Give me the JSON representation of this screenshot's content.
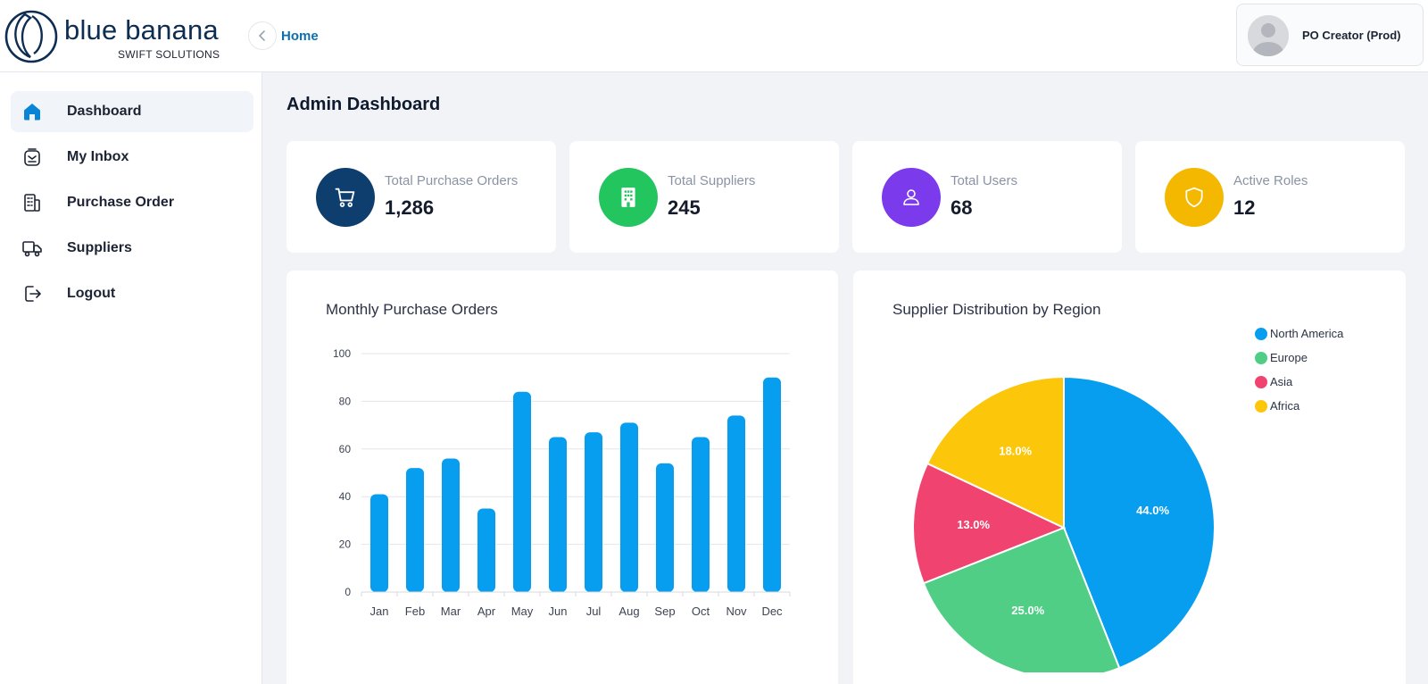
{
  "brand": {
    "name": "blue banana",
    "tagline": "SWIFT SOLUTIONS"
  },
  "header": {
    "breadcrumb": "Home",
    "user_name": "PO Creator (Prod)"
  },
  "sidebar": {
    "items": [
      {
        "label": "Dashboard",
        "icon": "home-icon",
        "active": true
      },
      {
        "label": "My Inbox",
        "icon": "inbox-icon",
        "active": false
      },
      {
        "label": "Purchase Order",
        "icon": "document-icon",
        "active": false
      },
      {
        "label": "Suppliers",
        "icon": "truck-icon",
        "active": false
      },
      {
        "label": "Logout",
        "icon": "logout-icon",
        "active": false
      }
    ]
  },
  "page": {
    "title": "Admin Dashboard"
  },
  "stats": [
    {
      "label": "Total Purchase Orders",
      "value": "1,286",
      "icon": "cart-icon",
      "color": "#0d3e6e"
    },
    {
      "label": "Total Suppliers",
      "value": "245",
      "icon": "building-icon",
      "color": "#22c55e"
    },
    {
      "label": "Total Users",
      "value": "68",
      "icon": "user-icon",
      "color": "#7c3aed"
    },
    {
      "label": "Active Roles",
      "value": "12",
      "icon": "shield-icon",
      "color": "#f5b800"
    }
  ],
  "chart_data": [
    {
      "type": "bar",
      "title": "Monthly Purchase Orders",
      "categories": [
        "Jan",
        "Feb",
        "Mar",
        "Apr",
        "May",
        "Jun",
        "Jul",
        "Aug",
        "Sep",
        "Oct",
        "Nov",
        "Dec"
      ],
      "values": [
        41,
        52,
        56,
        35,
        84,
        65,
        67,
        71,
        54,
        65,
        74,
        90
      ],
      "ylim": [
        0,
        100
      ],
      "yticks": [
        "0",
        "20",
        "40",
        "60",
        "80",
        "100"
      ],
      "color": "#079ef0",
      "grid": true
    },
    {
      "type": "pie",
      "title": "Supplier Distribution by Region",
      "labels": [
        "North America",
        "Europe",
        "Asia",
        "Africa"
      ],
      "values": [
        44.0,
        25.0,
        13.0,
        18.0
      ],
      "value_labels": [
        "44.0%",
        "25.0%",
        "13.0%",
        "18.0%"
      ],
      "colors": [
        "#079ef0",
        "#50ce86",
        "#f14370",
        "#fcc60a"
      ],
      "legend": "top-right"
    }
  ]
}
